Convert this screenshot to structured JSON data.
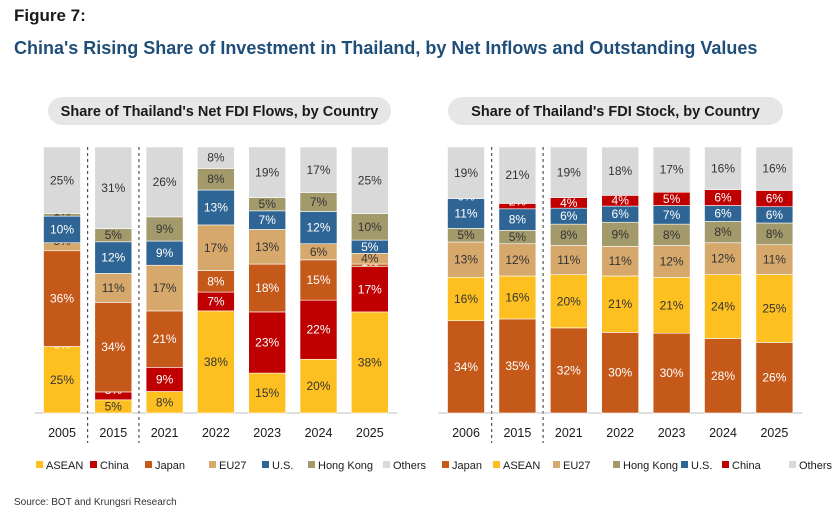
{
  "figure_label": "Figure 7:",
  "title": "China's Rising Share of Investment in Thailand, by Net Inflows and Outstanding Values",
  "source": "Source: BOT and Krungsri Research",
  "colors": {
    "ASEAN": "#fdc020",
    "China": "#c00000",
    "Japan": "#c5591a",
    "EU27": "#d6a86c",
    "U.S.": "#2e6594",
    "Hong Kong": "#a39a6c",
    "Others": "#d9d9d9",
    "title_bg": "#e7e6e6",
    "label_dark": "#333333",
    "label_light": "#ffffff"
  },
  "chart_data": [
    {
      "type": "bar",
      "stacked": true,
      "title": "Share of Thailand's Net FDI Flows, by Country",
      "categories": [
        "2005",
        "2015",
        "2021",
        "2022",
        "2023",
        "2024",
        "2025"
      ],
      "legend": [
        "ASEAN",
        "China",
        "Japan",
        "EU27",
        "U.S.",
        "Hong Kong",
        "Others"
      ],
      "legend_position": "bottom",
      "ylim": [
        0,
        100
      ],
      "separators_after": [
        0,
        1
      ],
      "series": [
        {
          "name": "ASEAN",
          "values": [
            25,
            5,
            8,
            38,
            15,
            20,
            38
          ],
          "labels": [
            "25%",
            "5%",
            "8%",
            "38%",
            "15%",
            "20%",
            "38%"
          ]
        },
        {
          "name": "China",
          "values": [
            0,
            3,
            9,
            7,
            23,
            22,
            17
          ],
          "labels": [
            "0%",
            "3%",
            "9%",
            "7%",
            "23%",
            "22%",
            "17%"
          ]
        },
        {
          "name": "Japan",
          "values": [
            36,
            34,
            21,
            8,
            18,
            15,
            1
          ],
          "labels": [
            "36%",
            "34%",
            "21%",
            "8%",
            "18%",
            "15%",
            "1%"
          ]
        },
        {
          "name": "EU27",
          "values": [
            3,
            11,
            17,
            17,
            13,
            6,
            4
          ],
          "labels": [
            "3%",
            "11%",
            "17%",
            "17%",
            "13%",
            "6%",
            "4%"
          ]
        },
        {
          "name": "U.S.",
          "values": [
            10,
            12,
            9,
            13,
            7,
            12,
            5
          ],
          "labels": [
            "10%",
            "12%",
            "9%",
            "13%",
            "7%",
            "12%",
            "5%"
          ]
        },
        {
          "name": "Hong Kong",
          "values": [
            1,
            5,
            9,
            8,
            5,
            7,
            10
          ],
          "labels": [
            "1%",
            "5%",
            "9%",
            "8%",
            "5%",
            "7%",
            "10%"
          ]
        },
        {
          "name": "Others",
          "values": [
            25,
            31,
            26,
            8,
            19,
            17,
            25
          ],
          "labels": [
            "25%",
            "31%",
            "26%",
            "8%",
            "19%",
            "17%",
            "25%"
          ]
        }
      ]
    },
    {
      "type": "bar",
      "stacked": true,
      "title": "Share of Thailand's FDI Stock, by Country",
      "categories": [
        "2006",
        "2015",
        "2021",
        "2022",
        "2023",
        "2024",
        "2025"
      ],
      "legend": [
        "Japan",
        "ASEAN",
        "EU27",
        "Hong Kong",
        "U.S.",
        "China",
        "Others"
      ],
      "legend_position": "bottom",
      "ylim": [
        0,
        100
      ],
      "separators_after": [
        0,
        1
      ],
      "series": [
        {
          "name": "Japan",
          "values": [
            34,
            35,
            32,
            30,
            30,
            28,
            26
          ],
          "labels": [
            "34%",
            "35%",
            "32%",
            "30%",
            "30%",
            "28%",
            "26%"
          ]
        },
        {
          "name": "ASEAN",
          "values": [
            16,
            16,
            20,
            21,
            21,
            24,
            25
          ],
          "labels": [
            "16%",
            "16%",
            "20%",
            "21%",
            "21%",
            "24%",
            "25%"
          ]
        },
        {
          "name": "EU27",
          "values": [
            13,
            12,
            11,
            11,
            12,
            12,
            11
          ],
          "labels": [
            "13%",
            "12%",
            "11%",
            "11%",
            "12%",
            "12%",
            "11%"
          ]
        },
        {
          "name": "Hong Kong",
          "values": [
            5,
            5,
            8,
            9,
            8,
            8,
            8
          ],
          "labels": [
            "5%",
            "5%",
            "8%",
            "9%",
            "8%",
            "8%",
            "8%"
          ]
        },
        {
          "name": "U.S.",
          "values": [
            11,
            8,
            6,
            6,
            7,
            6,
            6
          ],
          "labels": [
            "11%",
            "8%",
            "6%",
            "6%",
            "7%",
            "6%",
            "6%"
          ]
        },
        {
          "name": "China",
          "values": [
            0,
            2,
            4,
            4,
            5,
            6,
            6
          ],
          "labels": [
            "0%",
            "2%",
            "4%",
            "4%",
            "5%",
            "6%",
            "6%"
          ]
        },
        {
          "name": "Others",
          "values": [
            19,
            21,
            19,
            18,
            17,
            16,
            16
          ],
          "labels": [
            "19%",
            "21%",
            "19%",
            "18%",
            "17%",
            "16%",
            "16%"
          ]
        }
      ]
    }
  ]
}
